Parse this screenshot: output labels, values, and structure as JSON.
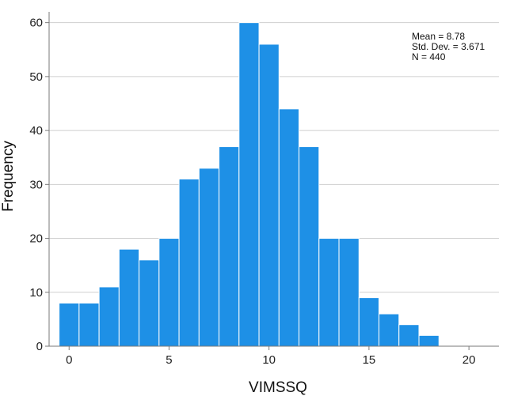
{
  "chart_data": {
    "type": "bar",
    "subtype": "histogram",
    "xlabel": "VIMSSQ",
    "ylabel": "Frequency",
    "xlim": [
      -1,
      21.5
    ],
    "ylim": [
      0,
      62
    ],
    "xticks": [
      0,
      5,
      10,
      15,
      20
    ],
    "yticks": [
      0,
      10,
      20,
      30,
      40,
      50,
      60
    ],
    "grid": "horizontal",
    "bar_color": "#1e90e6",
    "bins": [
      {
        "start": -0.5,
        "end": 0.5,
        "value": 8
      },
      {
        "start": 0.5,
        "end": 1.5,
        "value": 8
      },
      {
        "start": 1.5,
        "end": 2.5,
        "value": 11
      },
      {
        "start": 2.5,
        "end": 3.5,
        "value": 18
      },
      {
        "start": 3.5,
        "end": 4.5,
        "value": 16
      },
      {
        "start": 4.5,
        "end": 5.5,
        "value": 20
      },
      {
        "start": 5.5,
        "end": 6.5,
        "value": 31
      },
      {
        "start": 6.5,
        "end": 7.5,
        "value": 33
      },
      {
        "start": 7.5,
        "end": 8.5,
        "value": 37
      },
      {
        "start": 8.5,
        "end": 9.5,
        "value": 60
      },
      {
        "start": 9.5,
        "end": 10.5,
        "value": 56
      },
      {
        "start": 10.5,
        "end": 11.5,
        "value": 44
      },
      {
        "start": 11.5,
        "end": 12.5,
        "value": 37
      },
      {
        "start": 12.5,
        "end": 13.5,
        "value": 20
      },
      {
        "start": 13.5,
        "end": 14.5,
        "value": 20
      },
      {
        "start": 14.5,
        "end": 15.5,
        "value": 9
      },
      {
        "start": 15.5,
        "end": 16.5,
        "value": 6
      },
      {
        "start": 16.5,
        "end": 17.5,
        "value": 4
      },
      {
        "start": 17.5,
        "end": 18.5,
        "value": 2
      }
    ],
    "stats": {
      "mean": "Mean = 8.78",
      "std_dev": "Std. Dev. = 3.671",
      "n": "N = 440"
    }
  }
}
